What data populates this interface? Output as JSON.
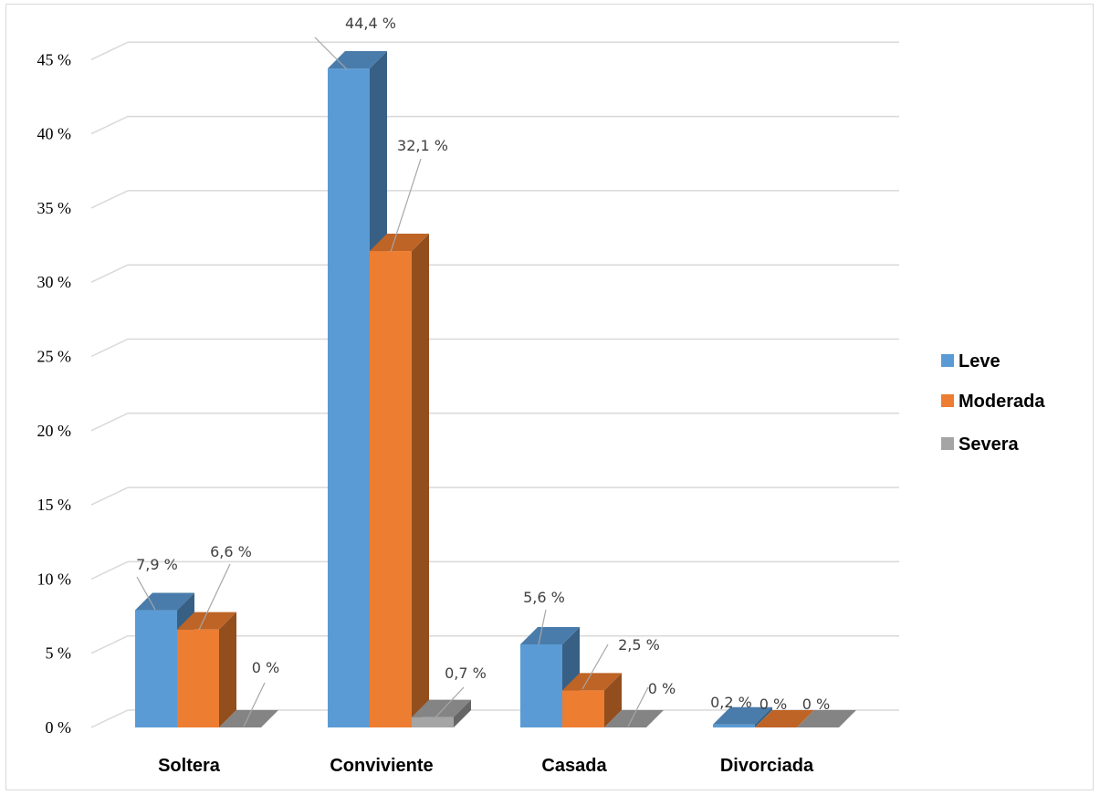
{
  "chart_data": {
    "type": "bar",
    "title": "",
    "xlabel": "",
    "ylabel": "",
    "categories": [
      "Soltera",
      "Conviviente",
      "Casada",
      "Divorciada"
    ],
    "series": [
      {
        "name": "Leve",
        "values": [
          7.9,
          44.4,
          5.6,
          0.2
        ],
        "labels": [
          "7,9 %",
          "44,4 %",
          "5,6 %",
          "0,2 %"
        ],
        "color": "#5B9BD5"
      },
      {
        "name": "Moderada",
        "values": [
          6.6,
          32.1,
          2.5,
          0
        ],
        "labels": [
          "6,6 %",
          "32,1 %",
          "2,5 %",
          "0 %"
        ],
        "color": "#ED7D31"
      },
      {
        "name": "Severa",
        "values": [
          0,
          0.7,
          0,
          0
        ],
        "labels": [
          "0 %",
          "0,7 %",
          "0 %",
          "0 %"
        ],
        "color": "#A5A5A5"
      }
    ],
    "yticks": [
      "0 %",
      "5 %",
      "10 %",
      "15 %",
      "20 %",
      "25 %",
      "30 %",
      "35 %",
      "40 %",
      "45 %"
    ],
    "ylim": [
      0,
      45
    ],
    "grid": true,
    "legend_position": "right",
    "three_d": true
  }
}
